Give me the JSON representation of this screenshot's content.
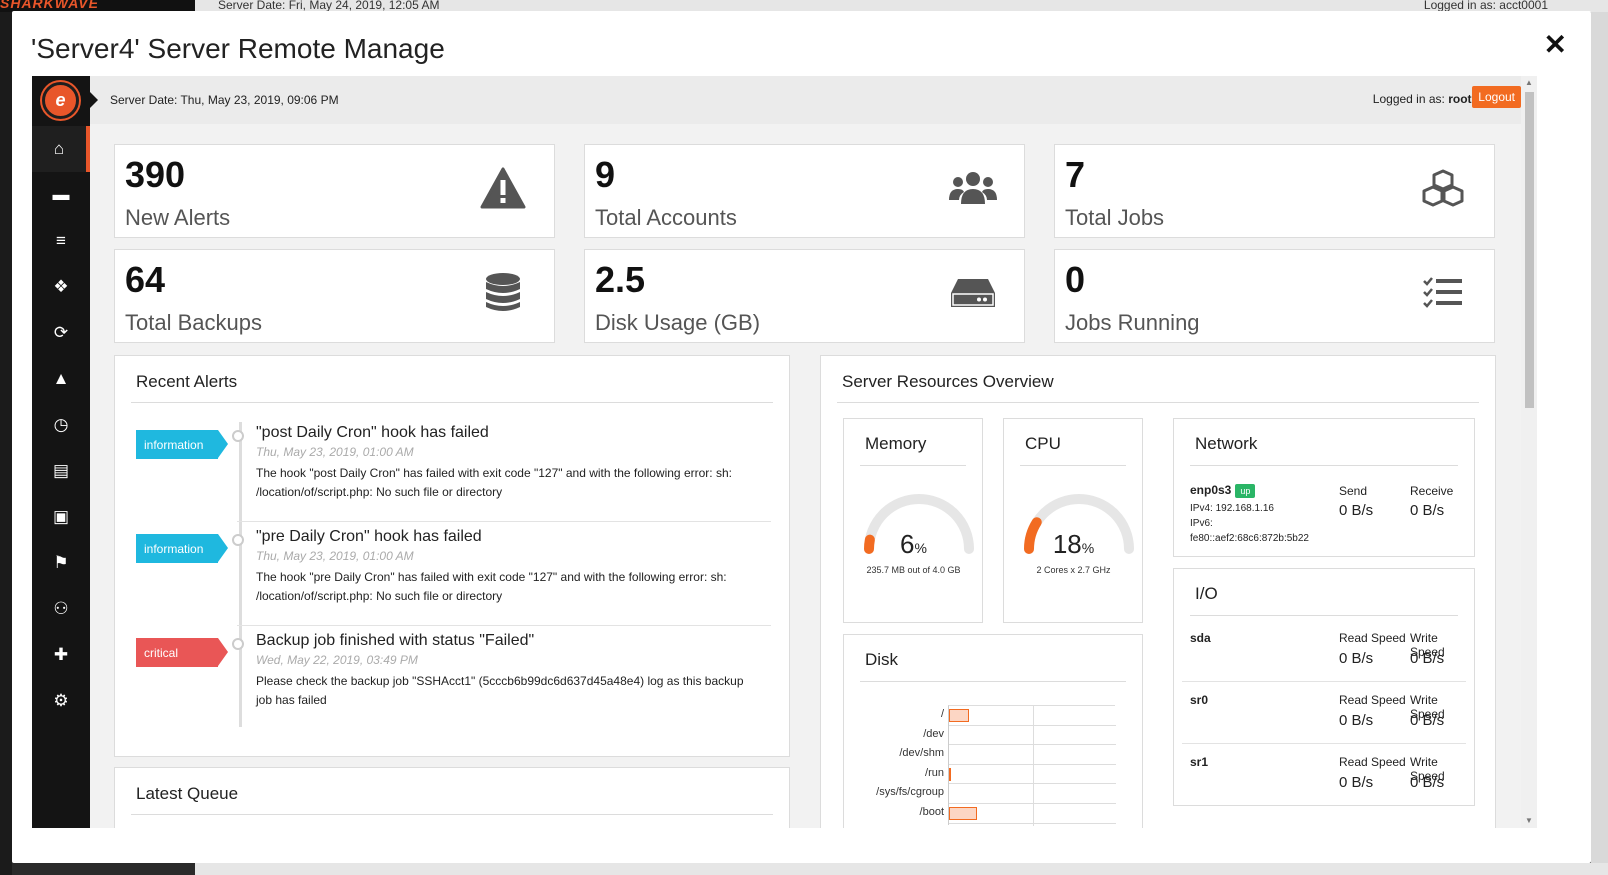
{
  "background": {
    "logo_text": "SHARKWAVE",
    "server_date": "Server Date: Fri, May 24, 2019, 12:05 AM",
    "logged_in": "Logged in as: acct0001"
  },
  "modal": {
    "title": "'Server4' Server Remote Manage",
    "close_label": "✕"
  },
  "topbar": {
    "server_date": "Server Date: Thu, May 23, 2019, 09:06 PM",
    "logged_in_prefix": "Logged in as:",
    "user": "root",
    "separator": "|",
    "logout_label": "Logout"
  },
  "sidebar": {
    "items": [
      {
        "icon": "home-icon",
        "glyph": "⌂",
        "active": true
      },
      {
        "icon": "folder-icon",
        "glyph": "▬"
      },
      {
        "icon": "database-icon",
        "glyph": "≡"
      },
      {
        "icon": "cubes-icon",
        "glyph": "❖"
      },
      {
        "icon": "refresh-icon",
        "glyph": "⟳"
      },
      {
        "icon": "warning-icon",
        "glyph": "▲"
      },
      {
        "icon": "clock-icon",
        "glyph": "◷"
      },
      {
        "icon": "file-icon",
        "glyph": "▤"
      },
      {
        "icon": "lock-icon",
        "glyph": "▣"
      },
      {
        "icon": "flag-icon",
        "glyph": "⚑"
      },
      {
        "icon": "users-icon",
        "glyph": "⚇"
      },
      {
        "icon": "puzzle-icon",
        "glyph": "✚"
      },
      {
        "icon": "gear-icon",
        "glyph": "⚙"
      }
    ]
  },
  "stats": [
    {
      "value": "390",
      "label": "New Alerts",
      "icon": "warning-icon"
    },
    {
      "value": "9",
      "label": "Total Accounts",
      "icon": "users-icon"
    },
    {
      "value": "7",
      "label": "Total Jobs",
      "icon": "cubes-icon"
    },
    {
      "value": "64",
      "label": "Total Backups",
      "icon": "database-icon"
    },
    {
      "value": "2.5",
      "label": "Disk Usage (GB)",
      "icon": "hdd-icon"
    },
    {
      "value": "0",
      "label": "Jobs Running",
      "icon": "tasks-icon"
    }
  ],
  "recent_alerts": {
    "title": "Recent Alerts",
    "items": [
      {
        "level": "information",
        "title": "\"post Daily Cron\" hook has failed",
        "time": "Thu, May 23, 2019, 01:00 AM",
        "message": "The hook \"post Daily Cron\" has failed with exit code \"127\" and with the following error: sh: /location/of/script.php: No such file or directory"
      },
      {
        "level": "information",
        "title": "\"pre Daily Cron\" hook has failed",
        "time": "Thu, May 23, 2019, 01:00 AM",
        "message": "The hook \"pre Daily Cron\" has failed with exit code \"127\" and with the following error: sh: /location/of/script.php: No such file or directory"
      },
      {
        "level": "critical",
        "title": "Backup job finished with status \"Failed\"",
        "time": "Wed, May 22, 2019, 03:49 PM",
        "message": "Please check the backup job \"SSHAcct1\" (5cccb6b99dc6d637d45a48e4) log as this backup job has failed"
      }
    ]
  },
  "latest_queue": {
    "title": "Latest Queue"
  },
  "resources": {
    "title": "Server Resources Overview",
    "memory": {
      "title": "Memory",
      "percent": 6,
      "value": "6",
      "unit": "%",
      "caption": "235.7 MB out of 4.0 GB"
    },
    "cpu": {
      "title": "CPU",
      "percent": 18,
      "value": "18",
      "unit": "%",
      "caption": "2 Cores x 2.7 GHz"
    },
    "network": {
      "title": "Network",
      "iface": "enp0s3",
      "status": "up",
      "ipv4": "IPv4: 192.168.1.16",
      "ipv6_label": "IPv6:",
      "ipv6": "fe80::aef2:68c6:872b:5b22",
      "send_label": "Send",
      "receive_label": "Receive",
      "send_value": "0 B/s",
      "receive_value": "0 B/s"
    },
    "io": {
      "title": "I/O",
      "devices": [
        {
          "name": "sda",
          "read_label": "Read Speed",
          "write_label": "Write Speed",
          "read": "0 B/s",
          "write": "0 B/s"
        },
        {
          "name": "sr0",
          "read_label": "Read Speed",
          "write_label": "Write Speed",
          "read": "0 B/s",
          "write": "0 B/s"
        },
        {
          "name": "sr1",
          "read_label": "Read Speed",
          "write_label": "Write Speed",
          "read": "0 B/s",
          "write": "0 B/s"
        }
      ]
    },
    "disk": {
      "title": "Disk",
      "mounts": [
        {
          "name": "/",
          "usage_fraction": 0.12
        },
        {
          "name": "/dev",
          "usage_fraction": 0
        },
        {
          "name": "/dev/shm",
          "usage_fraction": 0
        },
        {
          "name": "/run",
          "usage_fraction": 0.01
        },
        {
          "name": "/sys/fs/cgroup",
          "usage_fraction": 0
        },
        {
          "name": "/boot",
          "usage_fraction": 0.17
        }
      ]
    }
  },
  "colors": {
    "accent": "#f26b21",
    "info": "#1fb8df",
    "critical": "#e95656",
    "up": "#2ab566"
  }
}
